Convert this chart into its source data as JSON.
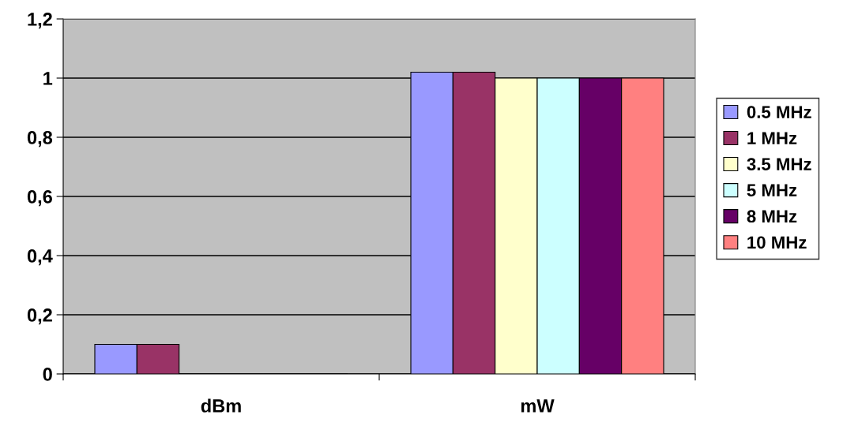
{
  "chart_data": {
    "type": "bar",
    "categories": [
      "dBm",
      "mW"
    ],
    "series": [
      {
        "name": "0.5 MHz",
        "color": "#9999ff",
        "values": [
          0.1,
          1.02
        ]
      },
      {
        "name": "1 MHz",
        "color": "#993366",
        "values": [
          0.1,
          1.02
        ]
      },
      {
        "name": "3.5 MHz",
        "color": "#ffffcc",
        "values": [
          0,
          1
        ]
      },
      {
        "name": "5 MHz",
        "color": "#ccffff",
        "values": [
          0,
          1
        ]
      },
      {
        "name": "8 MHz",
        "color": "#660066",
        "values": [
          0,
          1
        ]
      },
      {
        "name": "10 MHz",
        "color": "#ff8080",
        "values": [
          0,
          1
        ]
      }
    ],
    "ylim": [
      0,
      1.2
    ],
    "yticks": [
      0,
      {
        "value": 0.2,
        "label": "0,2"
      },
      {
        "value": 0.4,
        "label": "0,4"
      },
      {
        "value": 0.6,
        "label": "0,6"
      },
      {
        "value": 0.8,
        "label": "0,8"
      },
      1,
      {
        "value": 1.2,
        "label": "1,2"
      }
    ],
    "grid": "y",
    "legend": "right"
  }
}
